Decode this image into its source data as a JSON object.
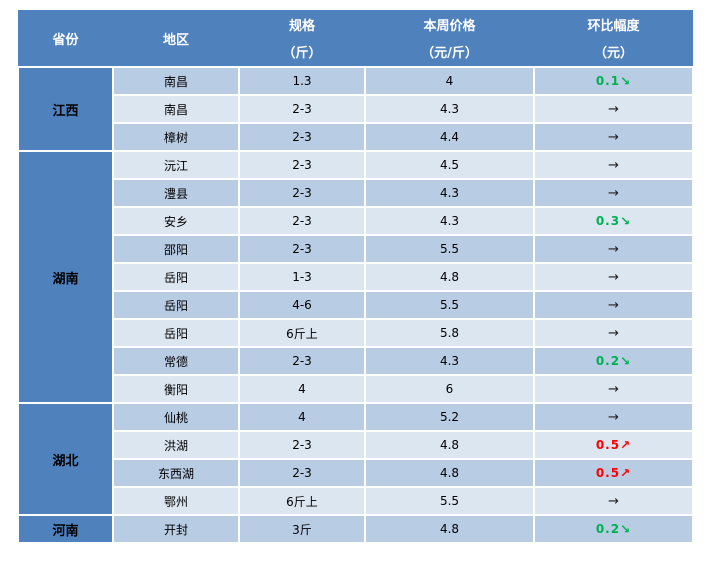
{
  "colors": {
    "header_bg": "#4f81bd",
    "province_bg": "#4f81bd",
    "row_dark": "#b8cce4",
    "row_light": "#dce6f1",
    "down_green": "#00b050",
    "up_red": "#fe0000",
    "flat_black": "#1f1f1f",
    "header_text": "#ffffff",
    "body_text": "#000000"
  },
  "table": {
    "headers": [
      {
        "line1": "省份",
        "line2": ""
      },
      {
        "line1": "地区",
        "line2": ""
      },
      {
        "line1": "规格",
        "line2": "（斤）"
      },
      {
        "line1": "本周价格",
        "line2": "（元/斤）"
      },
      {
        "line1": "环比幅度",
        "line2": "（元）"
      }
    ],
    "arrows": {
      "flat": "→",
      "up": "↗",
      "down": "↘"
    },
    "groups": [
      {
        "province": "江西",
        "rows": [
          {
            "region": "南昌",
            "spec": "1.3",
            "price": "4",
            "change": "0.1",
            "dir": "down"
          },
          {
            "region": "南昌",
            "spec": "2-3",
            "price": "4.3",
            "change": "",
            "dir": "flat"
          },
          {
            "region": "樟树",
            "spec": "2-3",
            "price": "4.4",
            "change": "",
            "dir": "flat"
          }
        ]
      },
      {
        "province": "湖南",
        "rows": [
          {
            "region": "沅江",
            "spec": "2-3",
            "price": "4.5",
            "change": "",
            "dir": "flat"
          },
          {
            "region": "澧县",
            "spec": "2-3",
            "price": "4.3",
            "change": "",
            "dir": "flat"
          },
          {
            "region": "安乡",
            "spec": "2-3",
            "price": "4.3",
            "change": "0.3",
            "dir": "down"
          },
          {
            "region": "邵阳",
            "spec": "2-3",
            "price": "5.5",
            "change": "",
            "dir": "flat"
          },
          {
            "region": "岳阳",
            "spec": "1-3",
            "price": "4.8",
            "change": "",
            "dir": "flat"
          },
          {
            "region": "岳阳",
            "spec": "4-6",
            "price": "5.5",
            "change": "",
            "dir": "flat"
          },
          {
            "region": "岳阳",
            "spec": "6斤上",
            "price": "5.8",
            "change": "",
            "dir": "flat"
          },
          {
            "region": "常德",
            "spec": "2-3",
            "price": "4.3",
            "change": "0.2",
            "dir": "down"
          },
          {
            "region": "衡阳",
            "spec": "4",
            "price": "6",
            "change": "",
            "dir": "flat"
          }
        ]
      },
      {
        "province": "湖北",
        "rows": [
          {
            "region": "仙桃",
            "spec": "4",
            "price": "5.2",
            "change": "",
            "dir": "flat"
          },
          {
            "region": "洪湖",
            "spec": "2-3",
            "price": "4.8",
            "change": "0.5",
            "dir": "up"
          },
          {
            "region": "东西湖",
            "spec": "2-3",
            "price": "4.8",
            "change": "0.5",
            "dir": "up"
          },
          {
            "region": "鄂州",
            "spec": "6斤上",
            "price": "5.5",
            "change": "",
            "dir": "flat"
          }
        ]
      },
      {
        "province": "河南",
        "rows": [
          {
            "region": "开封",
            "spec": "3斤",
            "price": "4.8",
            "change": "0.2",
            "dir": "down"
          }
        ]
      }
    ]
  }
}
